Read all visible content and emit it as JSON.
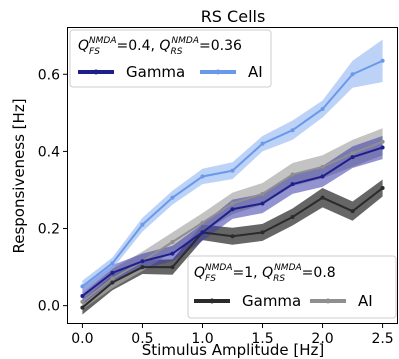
{
  "chart_data": {
    "type": "line",
    "title": "RS Cells",
    "xlabel": "Stimulus Amplitude  [Hz]",
    "ylabel": "Responsiveness [Hz]",
    "xlim": [
      -0.12,
      2.62
    ],
    "ylim": [
      -0.045,
      0.72
    ],
    "x_ticks": [
      "0.0",
      "0.5",
      "1.0",
      "1.5",
      "2.0",
      "2.5"
    ],
    "x_tick_values": [
      0.0,
      0.5,
      1.0,
      1.5,
      2.0,
      2.5
    ],
    "y_ticks": [
      "0.0",
      "0.2",
      "0.4",
      "0.6"
    ],
    "y_tick_values": [
      0.0,
      0.2,
      0.4,
      0.6
    ],
    "grid": false,
    "legends": [
      {
        "placement": "top-left",
        "parameters": {
          "Q_FS": "0.4",
          "Q_RS": "0.36"
        },
        "entries": [
          {
            "name": "Gamma",
            "color": "#1f1f8c"
          },
          {
            "name": "AI",
            "color": "#6a98ea"
          }
        ]
      },
      {
        "placement": "bottom-right",
        "parameters": {
          "Q_FS": "1",
          "Q_RS": "0.8"
        },
        "entries": [
          {
            "name": "Gamma",
            "color": "#2b2b2b"
          },
          {
            "name": "AI",
            "color": "#8f8f8f"
          }
        ]
      }
    ],
    "series": [
      {
        "name": "Gamma",
        "legend": 0,
        "color": "#1f1f8c",
        "band_color": "#3a3aa8",
        "band_opacity": 0.55,
        "x": [
          0.0,
          0.25,
          0.5,
          0.75,
          1.0,
          1.25,
          1.5,
          1.75,
          2.0,
          2.25,
          2.5
        ],
        "y": [
          0.025,
          0.085,
          0.115,
          0.135,
          0.19,
          0.25,
          0.265,
          0.315,
          0.335,
          0.385,
          0.41
        ],
        "err": [
          0.022,
          0.02,
          0.02,
          0.02,
          0.022,
          0.025,
          0.025,
          0.025,
          0.027,
          0.028,
          0.03
        ]
      },
      {
        "name": "AI",
        "legend": 0,
        "color": "#6a98ea",
        "band_color": "#8fb4f2",
        "band_opacity": 0.6,
        "x": [
          0.0,
          0.25,
          0.5,
          0.75,
          1.0,
          1.25,
          1.5,
          1.75,
          2.0,
          2.25,
          2.5
        ],
        "y": [
          0.05,
          0.11,
          0.21,
          0.28,
          0.335,
          0.35,
          0.42,
          0.455,
          0.51,
          0.6,
          0.635
        ],
        "err": [
          0.015,
          0.015,
          0.018,
          0.018,
          0.02,
          0.022,
          0.02,
          0.025,
          0.022,
          0.035,
          0.055
        ]
      },
      {
        "name": "Gamma",
        "legend": 1,
        "color": "#2b2b2b",
        "band_color": "#333333",
        "band_opacity": 0.75,
        "x": [
          0.0,
          0.25,
          0.5,
          0.75,
          1.0,
          1.25,
          1.5,
          1.75,
          2.0,
          2.25,
          2.5
        ],
        "y": [
          -0.005,
          0.06,
          0.1,
          0.1,
          0.19,
          0.18,
          0.19,
          0.23,
          0.28,
          0.245,
          0.305
        ],
        "err": [
          0.018,
          0.02,
          0.018,
          0.02,
          0.02,
          0.022,
          0.022,
          0.022,
          0.025,
          0.025,
          0.022
        ]
      },
      {
        "name": "AI",
        "legend": 1,
        "color": "#8f8f8f",
        "band_color": "#a9a9a9",
        "band_opacity": 0.7,
        "x": [
          0.0,
          0.25,
          0.5,
          0.75,
          1.0,
          1.25,
          1.5,
          1.75,
          2.0,
          2.25,
          2.5
        ],
        "y": [
          0.01,
          0.07,
          0.115,
          0.165,
          0.215,
          0.265,
          0.29,
          0.34,
          0.36,
          0.395,
          0.425
        ],
        "err": [
          0.02,
          0.025,
          0.025,
          0.025,
          0.025,
          0.028,
          0.028,
          0.03,
          0.03,
          0.035,
          0.035
        ]
      }
    ]
  }
}
